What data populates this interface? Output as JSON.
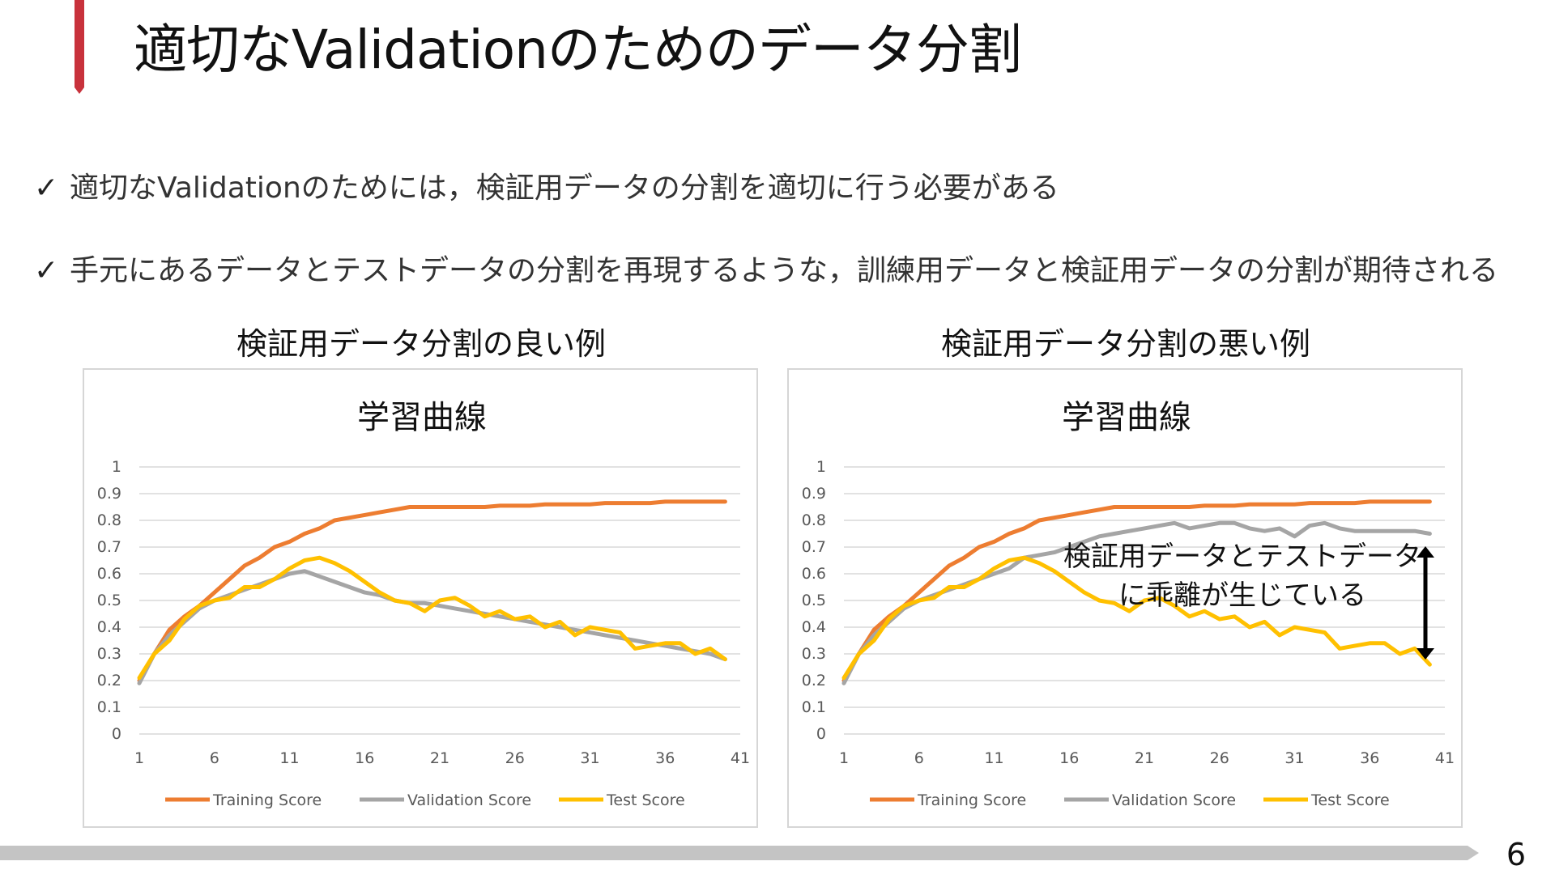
{
  "slide": {
    "title": "適切なValidationのためのデータ分割",
    "page_number": "6",
    "colors": {
      "accent": "#c8323c",
      "footer": "#c4c4c4"
    }
  },
  "bullets": [
    {
      "icon": "check-icon",
      "mark": "✓",
      "text": "適切なValidationのためには，検証用データの分割を適切に行う必要がある"
    },
    {
      "icon": "check-icon",
      "mark": "✓",
      "text": "手元にあるデータとテストデータの分割を再現するような，訓練用データと検証用データの分割が期待される"
    }
  ],
  "panels": [
    {
      "heading": "検証用データ分割の良い例"
    },
    {
      "heading": "検証用データ分割の悪い例",
      "annotation": [
        "検証用データとテストデータ",
        "に乖離が生じている"
      ]
    }
  ],
  "chart_data": [
    {
      "type": "line",
      "title": "学習曲線",
      "xlabel": "",
      "ylabel": "",
      "x_ticks": [
        1,
        6,
        11,
        16,
        21,
        26,
        31,
        36,
        41
      ],
      "xlim": [
        1,
        41
      ],
      "y_ticks": [
        "0",
        "0.1",
        "0.2",
        "0.3",
        "0.4",
        "0.5",
        "0.6",
        "0.7",
        "0.8",
        "0.9",
        "1"
      ],
      "ylim": [
        0,
        1
      ],
      "grid": true,
      "legend": "bottom",
      "series": [
        {
          "name": "Training Score",
          "color": "#ed7d31",
          "x": [
            1,
            2,
            3,
            4,
            5,
            6,
            7,
            8,
            9,
            10,
            11,
            12,
            13,
            14,
            15,
            16,
            17,
            18,
            19,
            20,
            21,
            22,
            23,
            24,
            25,
            26,
            27,
            28,
            29,
            30,
            31,
            32,
            33,
            34,
            35,
            36,
            37,
            38,
            39,
            40
          ],
          "values": [
            0.2,
            0.3,
            0.39,
            0.44,
            0.48,
            0.53,
            0.58,
            0.63,
            0.66,
            0.7,
            0.72,
            0.75,
            0.77,
            0.8,
            0.81,
            0.82,
            0.83,
            0.84,
            0.85,
            0.85,
            0.85,
            0.85,
            0.85,
            0.85,
            0.855,
            0.855,
            0.855,
            0.86,
            0.86,
            0.86,
            0.86,
            0.865,
            0.865,
            0.865,
            0.865,
            0.87,
            0.87,
            0.87,
            0.87,
            0.87
          ]
        },
        {
          "name": "Validation Score",
          "color": "#a5a5a5",
          "x": [
            1,
            2,
            3,
            4,
            5,
            6,
            7,
            8,
            9,
            10,
            11,
            12,
            13,
            14,
            15,
            16,
            17,
            18,
            19,
            20,
            21,
            22,
            23,
            24,
            25,
            26,
            27,
            28,
            29,
            30,
            31,
            32,
            33,
            34,
            35,
            36,
            37,
            38,
            39,
            40
          ],
          "values": [
            0.19,
            0.3,
            0.37,
            0.42,
            0.47,
            0.5,
            0.52,
            0.54,
            0.56,
            0.58,
            0.6,
            0.61,
            0.59,
            0.57,
            0.55,
            0.53,
            0.52,
            0.5,
            0.49,
            0.49,
            0.48,
            0.47,
            0.46,
            0.45,
            0.44,
            0.43,
            0.42,
            0.41,
            0.4,
            0.39,
            0.38,
            0.37,
            0.36,
            0.35,
            0.34,
            0.33,
            0.32,
            0.31,
            0.3,
            0.28
          ]
        },
        {
          "name": "Test Score",
          "color": "#ffc000",
          "x": [
            1,
            2,
            3,
            4,
            5,
            6,
            7,
            8,
            9,
            10,
            11,
            12,
            13,
            14,
            15,
            16,
            17,
            18,
            19,
            20,
            21,
            22,
            23,
            24,
            25,
            26,
            27,
            28,
            29,
            30,
            31,
            32,
            33,
            34,
            35,
            36,
            37,
            38,
            39,
            40
          ],
          "values": [
            0.21,
            0.3,
            0.35,
            0.43,
            0.48,
            0.5,
            0.51,
            0.55,
            0.55,
            0.58,
            0.62,
            0.65,
            0.66,
            0.64,
            0.61,
            0.57,
            0.53,
            0.5,
            0.49,
            0.46,
            0.5,
            0.51,
            0.48,
            0.44,
            0.46,
            0.43,
            0.44,
            0.4,
            0.42,
            0.37,
            0.4,
            0.39,
            0.38,
            0.32,
            0.33,
            0.34,
            0.34,
            0.3,
            0.32,
            0.28
          ]
        }
      ]
    },
    {
      "type": "line",
      "title": "学習曲線",
      "xlabel": "",
      "ylabel": "",
      "x_ticks": [
        1,
        6,
        11,
        16,
        21,
        26,
        31,
        36,
        41
      ],
      "xlim": [
        1,
        41
      ],
      "y_ticks": [
        "0",
        "0.1",
        "0.2",
        "0.3",
        "0.4",
        "0.5",
        "0.6",
        "0.7",
        "0.8",
        "0.9",
        "1"
      ],
      "ylim": [
        0,
        1
      ],
      "grid": true,
      "legend": "bottom",
      "series": [
        {
          "name": "Training Score",
          "color": "#ed7d31",
          "x": [
            1,
            2,
            3,
            4,
            5,
            6,
            7,
            8,
            9,
            10,
            11,
            12,
            13,
            14,
            15,
            16,
            17,
            18,
            19,
            20,
            21,
            22,
            23,
            24,
            25,
            26,
            27,
            28,
            29,
            30,
            31,
            32,
            33,
            34,
            35,
            36,
            37,
            38,
            39,
            40
          ],
          "values": [
            0.2,
            0.3,
            0.39,
            0.44,
            0.48,
            0.53,
            0.58,
            0.63,
            0.66,
            0.7,
            0.72,
            0.75,
            0.77,
            0.8,
            0.81,
            0.82,
            0.83,
            0.84,
            0.85,
            0.85,
            0.85,
            0.85,
            0.85,
            0.85,
            0.855,
            0.855,
            0.855,
            0.86,
            0.86,
            0.86,
            0.86,
            0.865,
            0.865,
            0.865,
            0.865,
            0.87,
            0.87,
            0.87,
            0.87,
            0.87
          ]
        },
        {
          "name": "Validation Score",
          "color": "#a5a5a5",
          "x": [
            1,
            2,
            3,
            4,
            5,
            6,
            7,
            8,
            9,
            10,
            11,
            12,
            13,
            14,
            15,
            16,
            17,
            18,
            19,
            20,
            21,
            22,
            23,
            24,
            25,
            26,
            27,
            28,
            29,
            30,
            31,
            32,
            33,
            34,
            35,
            36,
            37,
            38,
            39,
            40
          ],
          "values": [
            0.19,
            0.3,
            0.37,
            0.42,
            0.47,
            0.5,
            0.52,
            0.54,
            0.56,
            0.58,
            0.6,
            0.62,
            0.66,
            0.67,
            0.68,
            0.7,
            0.72,
            0.74,
            0.75,
            0.76,
            0.77,
            0.78,
            0.79,
            0.77,
            0.78,
            0.79,
            0.79,
            0.77,
            0.76,
            0.77,
            0.74,
            0.78,
            0.79,
            0.77,
            0.76,
            0.76,
            0.76,
            0.76,
            0.76,
            0.75
          ]
        },
        {
          "name": "Test Score",
          "color": "#ffc000",
          "x": [
            1,
            2,
            3,
            4,
            5,
            6,
            7,
            8,
            9,
            10,
            11,
            12,
            13,
            14,
            15,
            16,
            17,
            18,
            19,
            20,
            21,
            22,
            23,
            24,
            25,
            26,
            27,
            28,
            29,
            30,
            31,
            32,
            33,
            34,
            35,
            36,
            37,
            38,
            39,
            40
          ],
          "values": [
            0.21,
            0.3,
            0.35,
            0.43,
            0.48,
            0.5,
            0.51,
            0.55,
            0.55,
            0.58,
            0.62,
            0.65,
            0.66,
            0.64,
            0.61,
            0.57,
            0.53,
            0.5,
            0.49,
            0.46,
            0.5,
            0.51,
            0.48,
            0.44,
            0.46,
            0.43,
            0.44,
            0.4,
            0.42,
            0.37,
            0.4,
            0.39,
            0.38,
            0.32,
            0.33,
            0.34,
            0.34,
            0.3,
            0.32,
            0.26
          ]
        }
      ]
    }
  ]
}
